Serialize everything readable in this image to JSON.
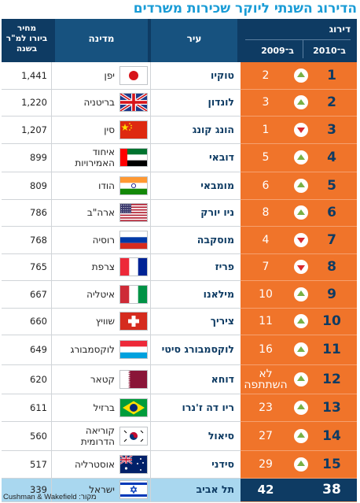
{
  "title": "הדירוג השנתי ליוקר שכירות משרדים",
  "header": {
    "rank": "דירוג",
    "rank_2010": "ב־2010",
    "rank_2009": "ב־2009",
    "city": "עיר",
    "country": "מדינה",
    "price_line1": "מחיר",
    "price_line2": "ביורו למ\"ר",
    "price_line3": "בשנה"
  },
  "rows": [
    {
      "r2010": "1",
      "dir": "up",
      "r2009": "2",
      "city": "טוקיו",
      "flag": "japan-flag",
      "country": "יפן",
      "price": "1,441"
    },
    {
      "r2010": "2",
      "dir": "up",
      "r2009": "3",
      "city": "לונדון",
      "flag": "uk-flag",
      "country": "בריטניה",
      "price": "1,220"
    },
    {
      "r2010": "3",
      "dir": "down",
      "r2009": "1",
      "city": "הונג קונג",
      "flag": "china-flag",
      "country": "סין",
      "price": "1,207"
    },
    {
      "r2010": "4",
      "dir": "up",
      "r2009": "5",
      "city": "דובאי",
      "flag": "uae-flag",
      "country": "איחוד האמירויות",
      "price": "899"
    },
    {
      "r2010": "5",
      "dir": "up",
      "r2009": "6",
      "city": "מומבאי",
      "flag": "india-flag",
      "country": "הודו",
      "price": "809"
    },
    {
      "r2010": "6",
      "dir": "up",
      "r2009": "8",
      "city": "ניו יורק",
      "flag": "usa-flag",
      "country": "ארה\"ב",
      "price": "786"
    },
    {
      "r2010": "7",
      "dir": "down",
      "r2009": "4",
      "city": "מוסקבה",
      "flag": "russia-flag",
      "country": "רוסיה",
      "price": "768"
    },
    {
      "r2010": "8",
      "dir": "down",
      "r2009": "7",
      "city": "פריז",
      "flag": "france-flag",
      "country": "צרפת",
      "price": "765"
    },
    {
      "r2010": "9",
      "dir": "up",
      "r2009": "10",
      "city": "מילאנו",
      "flag": "italy-flag",
      "country": "איטליה",
      "price": "667"
    },
    {
      "r2010": "10",
      "dir": "up",
      "r2009": "11",
      "city": "ציריך",
      "flag": "switzerland-flag",
      "country": "שוויץ",
      "price": "660"
    },
    {
      "r2010": "11",
      "dir": "up",
      "r2009": "16",
      "city": "לוקסמבורג סיטי",
      "flag": "luxembourg-flag",
      "country": "לוקסמבורג",
      "price": "649"
    },
    {
      "r2010": "12",
      "dir": "up",
      "r2009": "לא השתתפה",
      "city": "דוחא",
      "flag": "qatar-flag",
      "country": "קטאר",
      "price": "620"
    },
    {
      "r2010": "13",
      "dir": "up",
      "r2009": "23",
      "city": "ריו דה ז'נרו",
      "flag": "brazil-flag",
      "country": "ברזיל",
      "price": "611"
    },
    {
      "r2010": "14",
      "dir": "up",
      "r2009": "27",
      "city": "סיאול",
      "flag": "south-korea-flag",
      "country": "קוריאה הדרומית",
      "price": "560"
    },
    {
      "r2010": "15",
      "dir": "up",
      "r2009": "29",
      "city": "סידני",
      "flag": "australia-flag",
      "country": "אוסטרליה",
      "price": "517"
    }
  ],
  "israel": {
    "r2010": "38",
    "r2009": "42",
    "city": "תל אביב",
    "flag": "israel-flag",
    "country": "ישראל",
    "price": "339"
  },
  "source": "מקור: Cushman & Wakefield"
}
